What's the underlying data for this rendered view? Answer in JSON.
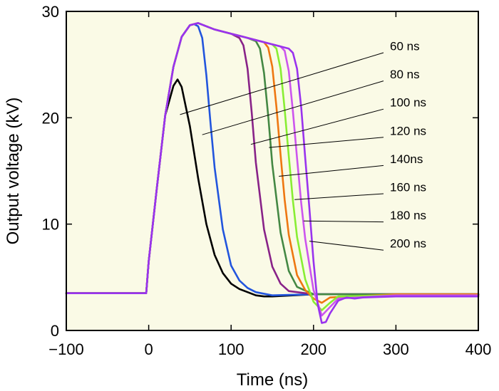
{
  "chart_data": {
    "type": "line",
    "xlabel": "Time (ns)",
    "ylabel": "Output voltage (kV)",
    "xlim": [
      -100,
      400
    ],
    "ylim": [
      0,
      30
    ],
    "xticks": [
      -100,
      0,
      100,
      200,
      300,
      400
    ],
    "xtick_labels": [
      "−100",
      "0",
      "100",
      "200",
      "300",
      "400"
    ],
    "yticks": [
      0,
      10,
      20,
      30
    ],
    "ytick_labels": [
      "0",
      "10",
      "20",
      "30"
    ],
    "grid": false,
    "legend": "none",
    "plot_background": "#fafae6",
    "series": [
      {
        "name": "60 ns",
        "color": "#000000",
        "x": [
          -100,
          -3,
          0,
          10,
          20,
          30,
          35,
          40,
          50,
          60,
          70,
          80,
          90,
          100,
          110,
          120,
          130,
          140,
          150,
          200,
          300,
          400
        ],
        "y": [
          3.5,
          3.5,
          6.5,
          13.5,
          20.2,
          23.0,
          23.6,
          22.9,
          19.2,
          14.3,
          10.0,
          7.1,
          5.4,
          4.4,
          3.9,
          3.6,
          3.3,
          3.2,
          3.2,
          3.4,
          3.4,
          3.4
        ]
      },
      {
        "name": "80 ns",
        "color": "#2255dd",
        "x": [
          -100,
          -3,
          0,
          10,
          20,
          30,
          40,
          50,
          55,
          60,
          65,
          70,
          75,
          80,
          90,
          100,
          110,
          120,
          130,
          150,
          200,
          300,
          400
        ],
        "y": [
          3.5,
          3.5,
          6.5,
          13.5,
          20.2,
          24.8,
          27.6,
          28.7,
          28.8,
          28.6,
          27.5,
          24.0,
          19.5,
          15.3,
          9.5,
          6.1,
          4.7,
          4.0,
          3.6,
          3.3,
          3.4,
          3.4,
          3.4
        ]
      },
      {
        "name": "100 ns",
        "color": "#882288",
        "x": [
          -100,
          -3,
          0,
          10,
          20,
          30,
          40,
          50,
          60,
          70,
          80,
          90,
          100,
          110,
          115,
          120,
          125,
          130,
          140,
          150,
          160,
          170,
          200,
          300,
          400
        ],
        "y": [
          3.5,
          3.5,
          6.5,
          13.5,
          20.2,
          24.8,
          27.6,
          28.7,
          28.9,
          28.6,
          28.3,
          28.1,
          27.9,
          27.5,
          26.8,
          24.6,
          20.5,
          15.8,
          9.5,
          6.0,
          4.4,
          3.7,
          3.4,
          3.4,
          3.4
        ]
      },
      {
        "name": "120 ns",
        "color": "#448844",
        "x": [
          -100,
          -3,
          0,
          10,
          20,
          30,
          40,
          50,
          60,
          70,
          80,
          90,
          100,
          110,
          120,
          130,
          135,
          140,
          145,
          150,
          160,
          170,
          180,
          200,
          300,
          400
        ],
        "y": [
          3.5,
          3.5,
          6.5,
          13.5,
          20.2,
          24.8,
          27.6,
          28.7,
          28.9,
          28.6,
          28.3,
          28.1,
          27.9,
          27.7,
          27.5,
          27.2,
          26.5,
          24.2,
          20.2,
          15.6,
          9.2,
          5.6,
          4.1,
          3.4,
          3.4,
          3.4
        ]
      },
      {
        "name": "140ns",
        "color": "#ee7711",
        "x": [
          -100,
          -3,
          0,
          10,
          20,
          30,
          40,
          50,
          60,
          70,
          80,
          90,
          100,
          110,
          120,
          130,
          140,
          145,
          150,
          155,
          160,
          165,
          170,
          180,
          190,
          200,
          210,
          220,
          300,
          400
        ],
        "y": [
          3.5,
          3.5,
          6.5,
          13.5,
          20.2,
          24.8,
          27.6,
          28.7,
          28.9,
          28.6,
          28.3,
          28.1,
          27.9,
          27.7,
          27.5,
          27.3,
          27.1,
          26.6,
          24.8,
          21.0,
          16.5,
          12.3,
          9.0,
          5.2,
          3.8,
          3.0,
          2.6,
          3.1,
          3.4,
          3.4
        ]
      },
      {
        "name": "160 ns",
        "color": "#88ee33",
        "x": [
          -100,
          -3,
          0,
          10,
          20,
          30,
          40,
          50,
          60,
          70,
          80,
          90,
          100,
          110,
          120,
          130,
          140,
          150,
          155,
          160,
          165,
          170,
          175,
          180,
          190,
          200,
          210,
          220,
          230,
          300,
          400
        ],
        "y": [
          3.5,
          3.5,
          6.5,
          13.5,
          20.2,
          24.8,
          27.6,
          28.7,
          28.9,
          28.6,
          28.3,
          28.1,
          27.9,
          27.7,
          27.5,
          27.3,
          27.1,
          26.9,
          26.5,
          24.6,
          20.8,
          16.4,
          12.2,
          8.8,
          4.8,
          2.7,
          1.9,
          2.6,
          3.2,
          3.3,
          3.3
        ]
      },
      {
        "name": "180 ns",
        "color": "#cc55ee",
        "x": [
          -100,
          -3,
          0,
          10,
          20,
          30,
          40,
          50,
          60,
          70,
          80,
          90,
          100,
          110,
          120,
          130,
          140,
          150,
          160,
          165,
          170,
          175,
          180,
          185,
          190,
          200,
          210,
          220,
          230,
          300,
          400
        ],
        "y": [
          3.5,
          3.5,
          6.5,
          13.5,
          20.2,
          24.8,
          27.6,
          28.7,
          28.9,
          28.6,
          28.3,
          28.1,
          27.9,
          27.7,
          27.5,
          27.3,
          27.1,
          26.9,
          26.7,
          26.3,
          24.4,
          20.6,
          16.2,
          12.0,
          8.6,
          3.8,
          1.4,
          2.2,
          3.0,
          3.3,
          3.3
        ]
      },
      {
        "name": "200 ns",
        "color": "#9933ee",
        "x": [
          -100,
          -3,
          0,
          10,
          20,
          30,
          40,
          50,
          60,
          70,
          80,
          90,
          100,
          110,
          120,
          130,
          140,
          150,
          160,
          170,
          175,
          180,
          185,
          190,
          195,
          200,
          205,
          210,
          215,
          220,
          230,
          240,
          250,
          260,
          300,
          400
        ],
        "y": [
          3.5,
          3.5,
          6.5,
          13.5,
          20.2,
          24.8,
          27.6,
          28.7,
          28.9,
          28.6,
          28.3,
          28.1,
          27.9,
          27.7,
          27.5,
          27.3,
          27.1,
          26.9,
          26.7,
          26.5,
          26.1,
          24.6,
          21.0,
          16.2,
          11.5,
          6.5,
          2.5,
          0.7,
          0.8,
          1.6,
          2.8,
          3.1,
          3.0,
          3.1,
          3.2,
          3.2
        ]
      }
    ],
    "annotations": [
      {
        "text": "60 ns",
        "target": [
          38,
          20.3
        ]
      },
      {
        "text": "80 ns",
        "target": [
          65,
          18.4
        ]
      },
      {
        "text": "100 ns",
        "target": [
          124,
          17.5
        ]
      },
      {
        "text": "120 ns",
        "target": [
          146,
          17.2
        ]
      },
      {
        "text": "140ns",
        "target": [
          158,
          14.5
        ]
      },
      {
        "text": "160 ns",
        "target": [
          177,
          12.3
        ]
      },
      {
        "text": "180 ns",
        "target": [
          188,
          10.3
        ]
      },
      {
        "text": "200 ns",
        "target": [
          195,
          8.4
        ]
      }
    ]
  }
}
